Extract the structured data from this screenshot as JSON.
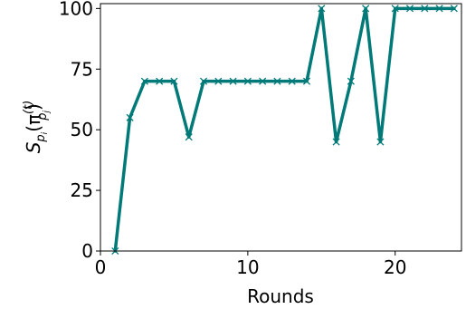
{
  "chart_data": {
    "type": "line",
    "xlabel": "Rounds",
    "ylabel": {
      "base": "S",
      "sub": "p",
      "subsub": "i",
      "open": "(π",
      "sup": "(t)",
      "sub2": "p",
      "sub2sub": "j",
      "close": ")"
    },
    "xlim": [
      0,
      24.5
    ],
    "ylim": [
      0,
      102
    ],
    "xticks": [
      0,
      10,
      20
    ],
    "yticks": [
      0,
      25,
      50,
      75,
      100
    ],
    "grid": false,
    "series": [
      {
        "color": "#007a78",
        "marker": "x",
        "x": [
          1,
          2,
          3,
          4,
          5,
          6,
          7,
          8,
          9,
          10,
          11,
          12,
          13,
          14,
          15,
          16,
          17,
          18,
          19,
          20,
          21,
          22,
          23,
          24
        ],
        "y": [
          0,
          55,
          70,
          70,
          70,
          47,
          70,
          70,
          70,
          70,
          70,
          70,
          70,
          70,
          100,
          45,
          70,
          100,
          45,
          100,
          100,
          100,
          100,
          100
        ]
      }
    ]
  }
}
